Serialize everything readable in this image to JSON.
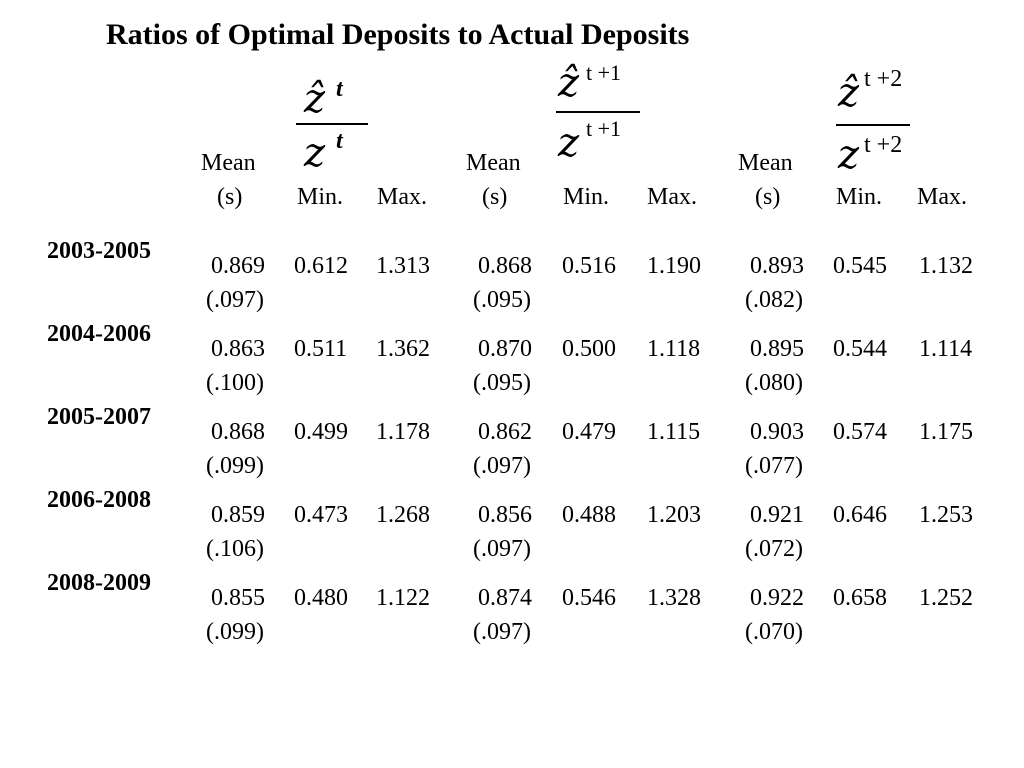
{
  "title": "Ratios of Optimal Deposits to Actual Deposits",
  "fraction_headers": [
    {
      "top_var": "ẑ",
      "top_sup": "t",
      "bottom_var": "z",
      "bottom_sup": "t"
    },
    {
      "top_var": "ẑ",
      "top_sup": "t +1",
      "bottom_var": "z",
      "bottom_sup": "t +1"
    },
    {
      "top_var": "ẑ",
      "top_sup": "t +2",
      "bottom_var": "z",
      "bottom_sup": "t +2"
    }
  ],
  "column_headers": {
    "mean_line1": "Mean",
    "mean_line2": "(s)",
    "min": "Min.",
    "max": "Max."
  },
  "rows": [
    {
      "period": "2003-2005",
      "groups": [
        {
          "mean": "0.869",
          "sd": "(.097)",
          "min": "0.612",
          "max": "1.313"
        },
        {
          "mean": "0.868",
          "sd": "(.095)",
          "min": "0.516",
          "max": "1.190"
        },
        {
          "mean": "0.893",
          "sd": "(.082)",
          "min": "0.545",
          "max": "1.132"
        }
      ]
    },
    {
      "period": "2004-2006",
      "groups": [
        {
          "mean": "0.863",
          "sd": "(.100)",
          "min": "0.511",
          "max": "1.362"
        },
        {
          "mean": "0.870",
          "sd": "(.095)",
          "min": "0.500",
          "max": "1.118"
        },
        {
          "mean": "0.895",
          "sd": "(.080)",
          "min": "0.544",
          "max": "1.114"
        }
      ]
    },
    {
      "period": "2005-2007",
      "groups": [
        {
          "mean": "0.868",
          "sd": "(.099)",
          "min": "0.499",
          "max": "1.178"
        },
        {
          "mean": "0.862",
          "sd": "(.097)",
          "min": "0.479",
          "max": "1.115"
        },
        {
          "mean": "0.903",
          "sd": "(.077)",
          "min": "0.574",
          "max": "1.175"
        }
      ]
    },
    {
      "period": "2006-2008",
      "groups": [
        {
          "mean": "0.859",
          "sd": "(.106)",
          "min": "0.473",
          "max": "1.268"
        },
        {
          "mean": "0.856",
          "sd": "(.097)",
          "min": "0.488",
          "max": "1.203"
        },
        {
          "mean": "0.921",
          "sd": "(.072)",
          "min": "0.646",
          "max": "1.253"
        }
      ]
    },
    {
      "period": "2008-2009",
      "groups": [
        {
          "mean": "0.855",
          "sd": "(.099)",
          "min": "0.480",
          "max": "1.122"
        },
        {
          "mean": "0.874",
          "sd": "(.097)",
          "min": "0.546",
          "max": "1.328"
        },
        {
          "mean": "0.922",
          "sd": "(.070)",
          "min": "0.658",
          "max": "1.252"
        }
      ]
    }
  ]
}
